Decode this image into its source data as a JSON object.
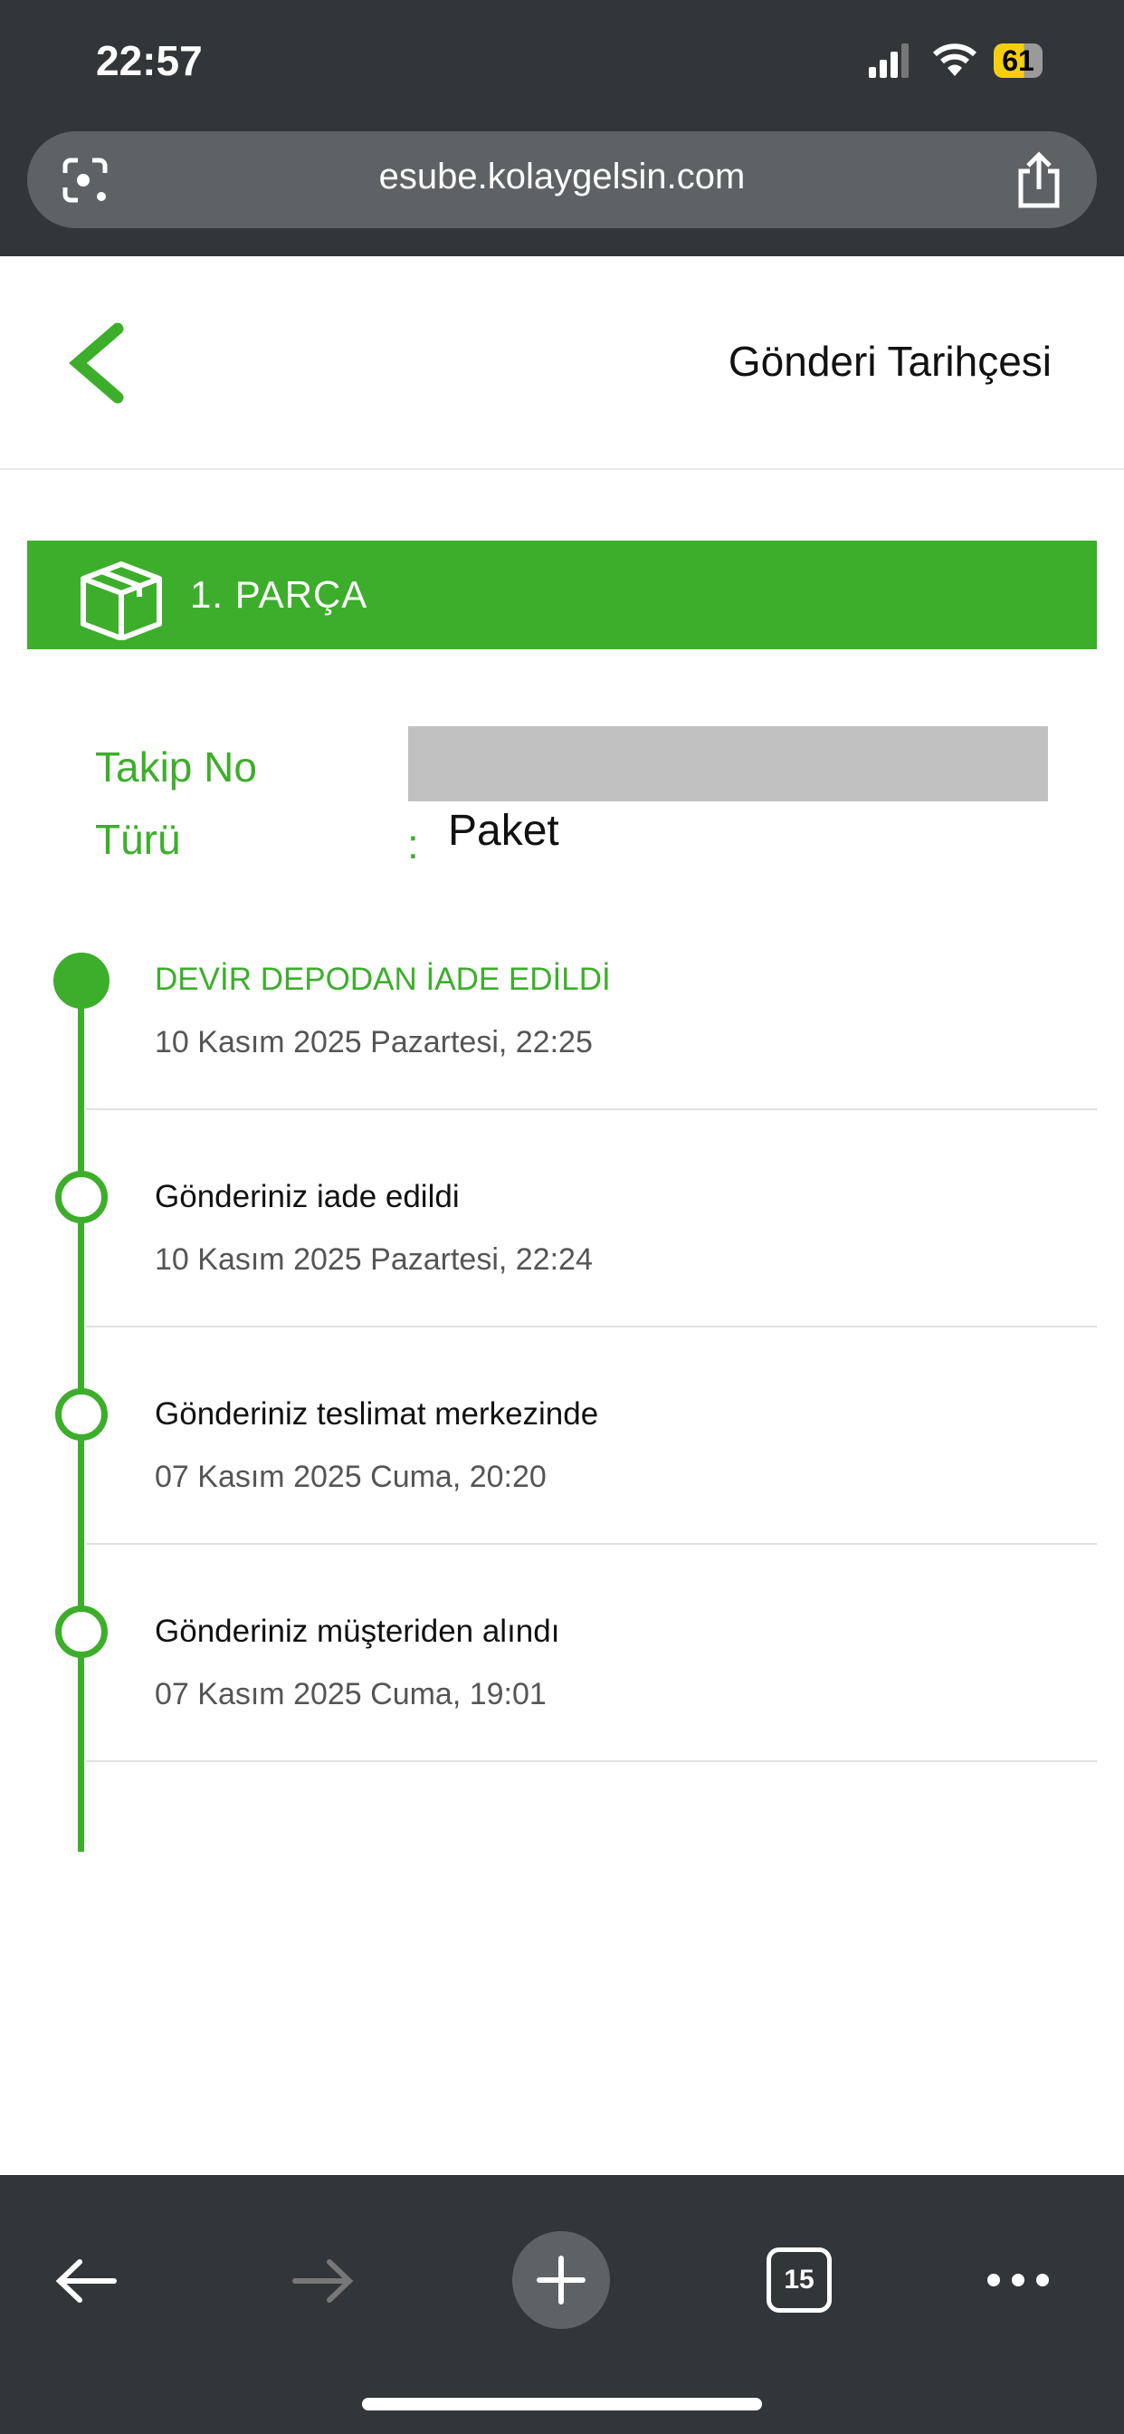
{
  "status_bar": {
    "time": "22:57",
    "battery": "61"
  },
  "browser": {
    "url": "esube.kolaygelsin.com",
    "tab_count": "15"
  },
  "header": {
    "title": "Gönderi Tarihçesi"
  },
  "piece": {
    "title": "1. PARÇA"
  },
  "info": {
    "tracking_label": "Takip No",
    "type_label": "Türü",
    "colon": ":",
    "type_value": "Paket"
  },
  "timeline": [
    {
      "title": "DEVİR DEPODAN İADE EDİLDİ",
      "date": "10 Kasım 2025 Pazartesi, 22:25",
      "current": true
    },
    {
      "title": "Gönderiniz iade edildi",
      "date": "10 Kasım 2025 Pazartesi, 22:24"
    },
    {
      "title": "Gönderiniz teslimat merkezinde",
      "date": "07 Kasım 2025 Cuma, 20:20"
    },
    {
      "title": "Gönderiniz müşteriden alındı",
      "date": "07 Kasım 2025 Cuma, 19:01"
    }
  ],
  "colors": {
    "accent": "#3dae2b",
    "chrome": "#333638"
  }
}
